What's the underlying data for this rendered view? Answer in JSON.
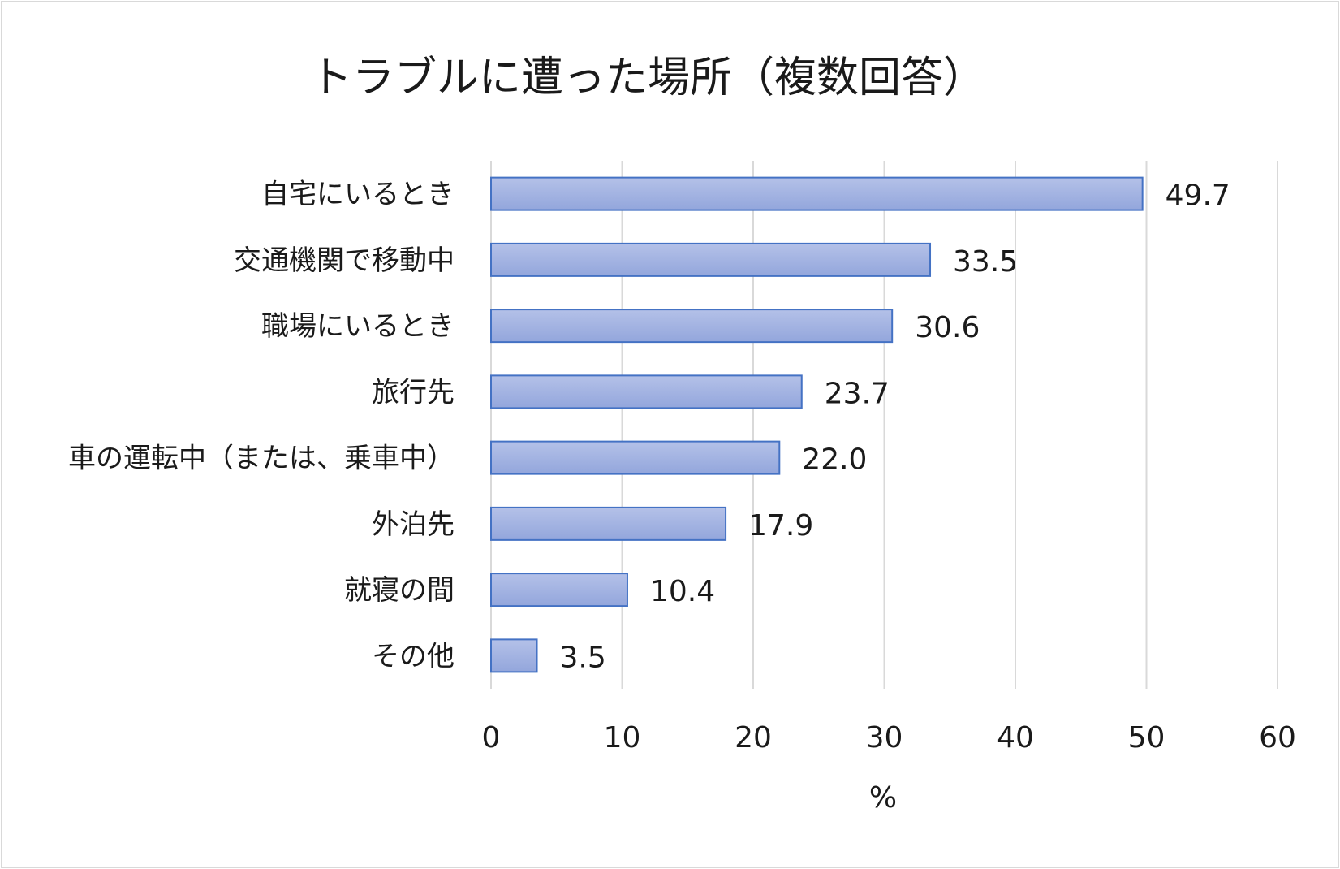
{
  "chart_data": {
    "type": "bar",
    "orientation": "horizontal",
    "title": "トラブルに遭った場所（複数回答）",
    "xlabel": "%",
    "ylabel": "",
    "categories": [
      "自宅にいるとき",
      "交通機関で移動中",
      "職場にいるとき",
      "旅行先",
      "車の運転中（または、乗車中）",
      "外泊先",
      "就寝の間",
      "その他"
    ],
    "values": [
      49.7,
      33.5,
      30.6,
      23.7,
      22.0,
      17.9,
      10.4,
      3.5
    ],
    "value_labels": [
      "49.7",
      "33.5",
      "30.6",
      "23.7",
      "22.0",
      "17.9",
      "10.4",
      "3.5"
    ],
    "xlim": [
      0,
      60
    ],
    "xticks": [
      0,
      10,
      20,
      30,
      40,
      50,
      60
    ],
    "grid": "vertical",
    "legend": "none",
    "bar_color": "#a8b7e2",
    "bar_edge_color": "#4472c4"
  }
}
